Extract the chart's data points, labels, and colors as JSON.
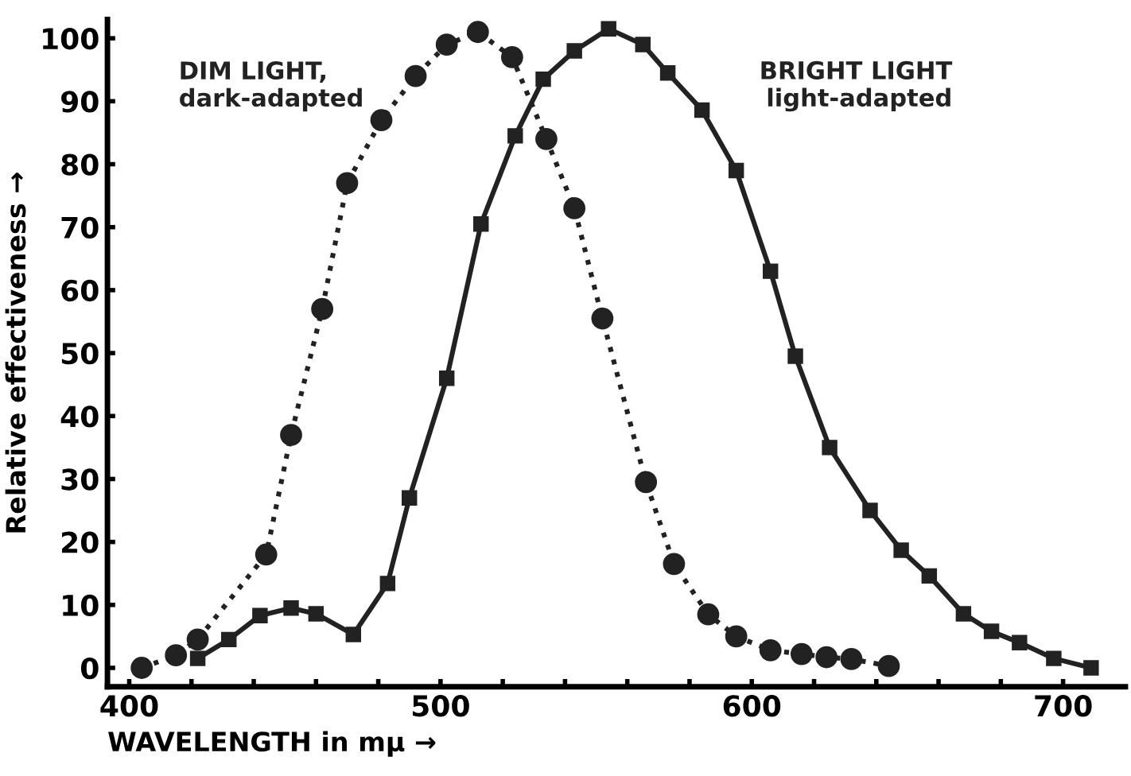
{
  "chart_data": {
    "type": "line",
    "xlabel": "WAVELENGTH in mμ →",
    "ylabel": "Relative effectiveness →",
    "xlim": [
      393,
      720
    ],
    "ylim": [
      -3,
      103
    ],
    "xticks": [
      400,
      {
        "value": 420,
        "label": null
      },
      {
        "value": 440,
        "label": null
      },
      {
        "value": 460,
        "label": null
      },
      {
        "value": 480,
        "label": null
      },
      500,
      {
        "value": 520,
        "label": null
      },
      {
        "value": 540,
        "label": null
      },
      {
        "value": 560,
        "label": null
      },
      {
        "value": 580,
        "label": null
      },
      600,
      {
        "value": 620,
        "label": null
      },
      {
        "value": 640,
        "label": null
      },
      {
        "value": 660,
        "label": null
      },
      {
        "value": 680,
        "label": null
      },
      700
    ],
    "yticks": [
      0,
      10,
      20,
      30,
      40,
      50,
      60,
      70,
      80,
      90,
      100
    ],
    "grid": false,
    "legend": false,
    "series": [
      {
        "name": "DIM LIGHT,\ndark-adapted",
        "color": "#222222",
        "marker": "circle",
        "line_style": "dotted",
        "x": [
          404,
          415,
          422,
          444,
          452,
          462,
          470,
          481,
          492,
          502,
          512,
          523,
          534,
          543,
          552,
          566,
          575,
          586,
          595,
          606,
          616,
          624,
          632,
          644
        ],
        "values": [
          0,
          2,
          4.5,
          18,
          37,
          57,
          77,
          87,
          94,
          99,
          101,
          97,
          84,
          73,
          55.5,
          29.5,
          16.5,
          8.5,
          5,
          2.8,
          2.2,
          1.7,
          1.4,
          0.3
        ]
      },
      {
        "name": "BRIGHT LIGHT\nlight-adapted",
        "color": "#222222",
        "marker": "square",
        "line_style": "solid",
        "x": [
          422,
          432,
          442,
          452,
          460,
          472,
          483,
          490,
          502,
          513,
          524,
          533,
          543,
          554,
          565,
          573,
          584,
          595,
          606,
          614,
          625,
          638,
          648,
          657,
          668,
          677,
          686,
          697,
          709
        ],
        "values": [
          1.5,
          4.5,
          8.3,
          9.5,
          8.6,
          5.3,
          13.4,
          27,
          46,
          70.5,
          84.5,
          93.5,
          98,
          101.5,
          99,
          94.5,
          88.6,
          79,
          63,
          49.5,
          35,
          25,
          18.7,
          14.6,
          8.6,
          5.8,
          4,
          1.5,
          0
        ]
      }
    ]
  }
}
